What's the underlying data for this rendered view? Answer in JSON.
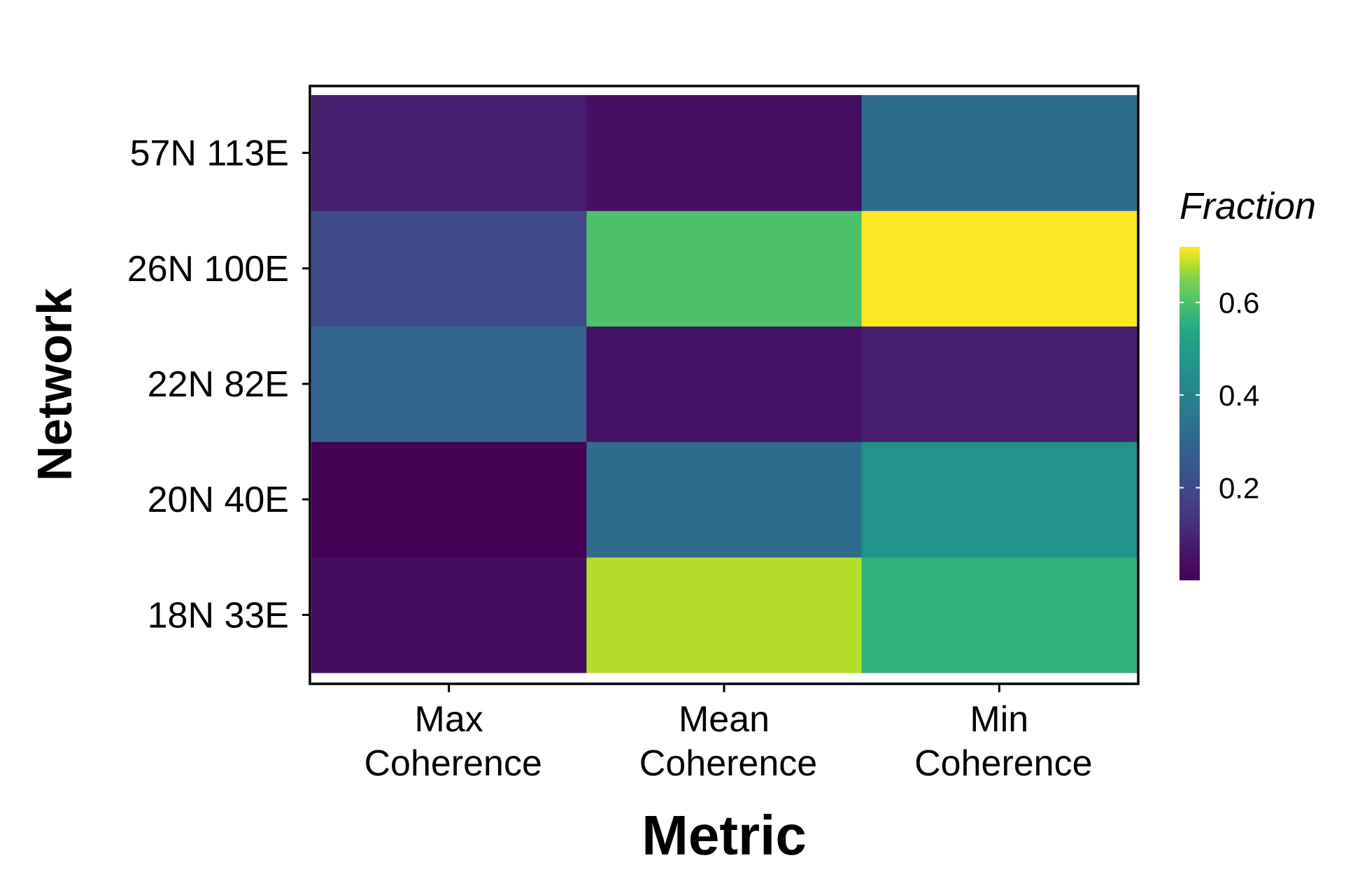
{
  "chart_data": {
    "type": "heatmap",
    "title": "",
    "xlabel": "Metric",
    "ylabel": "Network",
    "x_categories": [
      [
        "Max",
        "Coherence"
      ],
      [
        "Mean",
        "Coherence"
      ],
      [
        "Min",
        "Coherence"
      ]
    ],
    "y_categories": [
      "18N 33E",
      "20N 40E",
      "22N 82E",
      "26N 100E",
      "57N 113E"
    ],
    "values": [
      [
        0.03,
        0.68,
        0.56
      ],
      [
        0.0,
        0.32,
        0.46
      ],
      [
        0.29,
        0.05,
        0.08
      ],
      [
        0.2,
        0.6,
        0.72
      ],
      [
        0.08,
        0.04,
        0.32
      ]
    ],
    "colorbar": {
      "title": "Fraction",
      "min": 0.0,
      "max": 0.72,
      "ticks": [
        0.2,
        0.4,
        0.6
      ],
      "tick_labels": [
        "0.2",
        "0.4",
        "0.6"
      ],
      "colormap": "viridis",
      "placement": "right"
    },
    "grid": false
  }
}
